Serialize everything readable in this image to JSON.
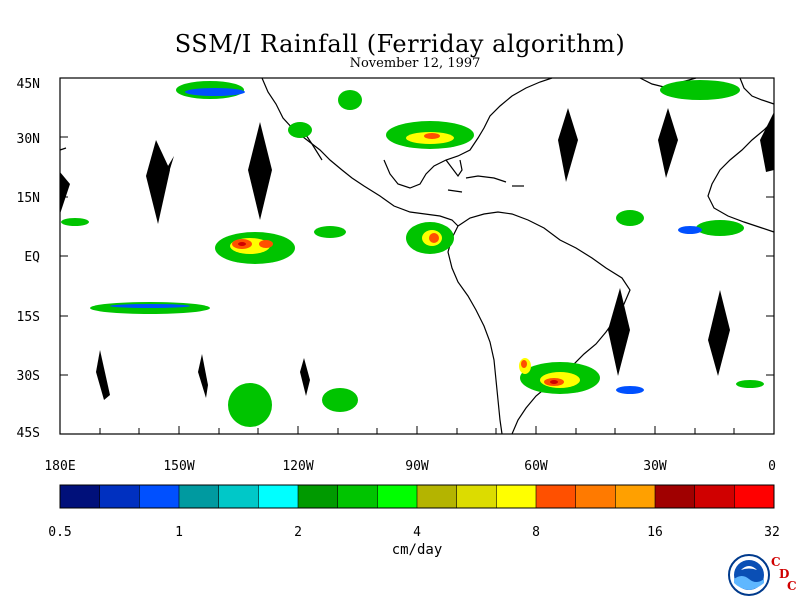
{
  "title": "SSM/I Rainfall (Ferriday algorithm)",
  "subtitle": "November 12, 1997",
  "map": {
    "lat_labels": [
      "45N",
      "30N",
      "15N",
      "EQ",
      "15S",
      "30S",
      "45S"
    ],
    "lon_labels": [
      "180E",
      "150W",
      "120W",
      "90W",
      "60W",
      "30W",
      "0"
    ],
    "extent": {
      "lon": [
        -180,
        0
      ],
      "lat": [
        -45,
        45
      ]
    }
  },
  "colorbar": {
    "unit": "cm/day",
    "tick_labels": [
      "0.5",
      "1",
      "2",
      "4",
      "8",
      "16",
      "32"
    ],
    "colors": [
      "#00107a",
      "#0030c0",
      "#0050ff",
      "#009aa0",
      "#00c8c8",
      "#00ffff",
      "#009a00",
      "#00c400",
      "#00ff00",
      "#b4b400",
      "#dcdc00",
      "#ffff00",
      "#ff5000",
      "#ff7a00",
      "#ffa000",
      "#a00000",
      "#d00000",
      "#ff0000"
    ]
  },
  "logo": {
    "name": "NOAA",
    "letters": [
      "C",
      "D",
      "C"
    ]
  }
}
